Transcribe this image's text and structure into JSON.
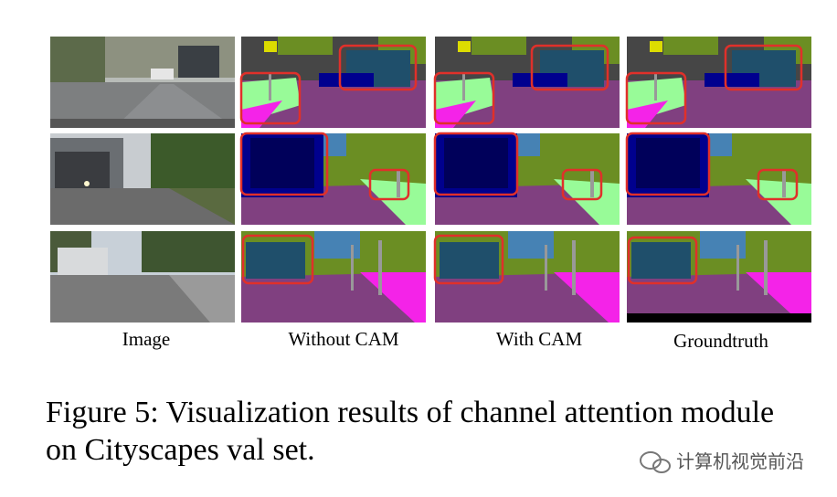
{
  "figure": {
    "columns": [
      "Image",
      "Without CAM",
      "With CAM",
      "Groundtruth"
    ],
    "caption": [
      "Figure 5: Visualization results of channel attention module",
      "on Cityscapes val set."
    ],
    "watermark": "计算机视觉前沿"
  }
}
